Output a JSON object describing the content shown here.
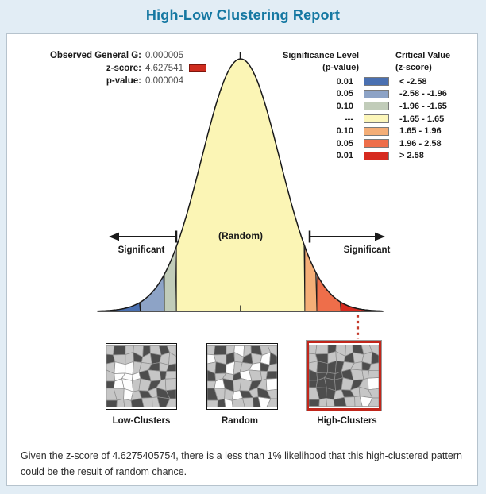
{
  "title": "High-Low Clustering Report",
  "stats": {
    "observed_label": "Observed General G:",
    "observed_value": "0.000005",
    "zscore_label": "z-score:",
    "zscore_value": "4.627541",
    "pvalue_label": "p-value:",
    "pvalue_value": "0.000004",
    "marker_color": "#cf2c1e"
  },
  "legend": {
    "sig_header": "Significance Level",
    "sig_subheader": "(p-value)",
    "crit_header": "Critical Value",
    "crit_subheader": "(z-score)",
    "rows": [
      {
        "p": "0.01",
        "color": "#4a70b1",
        "z": "< -2.58"
      },
      {
        "p": "0.05",
        "color": "#8da3c6",
        "z": "-2.58 - -1.96"
      },
      {
        "p": "0.10",
        "color": "#c1ccb9",
        "z": "-1.96 - -1.65"
      },
      {
        "p": "---",
        "color": "#fcf6ba",
        "z": "-1.65 - 1.65"
      },
      {
        "p": "0.10",
        "color": "#f4ae77",
        "z": "1.65 - 1.96"
      },
      {
        "p": "0.05",
        "color": "#ee6e4a",
        "z": "1.96 - 2.58"
      },
      {
        "p": "0.01",
        "color": "#d62a1f",
        "z": "> 2.58"
      }
    ]
  },
  "curve": {
    "random_label": "(Random)",
    "significant_left_label": "Significant",
    "significant_right_label": "Significant",
    "segments": [
      {
        "z0": -3.68,
        "z1": -2.58,
        "color": "#4a70b1"
      },
      {
        "z0": -2.58,
        "z1": -1.96,
        "color": "#8da3c6"
      },
      {
        "z0": -1.96,
        "z1": -1.65,
        "color": "#c1ccb9"
      },
      {
        "z0": -1.65,
        "z1": 1.65,
        "color": "#fbf5b5"
      },
      {
        "z0": 1.65,
        "z1": 1.96,
        "color": "#f4ae77"
      },
      {
        "z0": 1.96,
        "z1": 2.58,
        "color": "#ee6e4a"
      },
      {
        "z0": 2.58,
        "z1": 3.68,
        "color": "#d62a1f"
      }
    ]
  },
  "thumbnails": {
    "palette": {
      "0": "#fdfdfd",
      "1": "#c6c6c6",
      "2": "#4d4d4d"
    },
    "items": [
      {
        "label": "Low-Clusters",
        "highlighted": false,
        "grid": [
          "12112121",
          "21121211",
          "10011212",
          "10002121",
          "20011211",
          "11012122",
          "21121121"
        ]
      },
      {
        "label": "Random",
        "highlighted": false,
        "grid": [
          "12101211",
          "01212102",
          "12011021",
          "21120112",
          "10211210",
          "21102121",
          "12011201"
        ]
      },
      {
        "label": "High-Clusters",
        "highlighted": true,
        "grid": [
          "11211211",
          "12112112",
          "12221121",
          "22222111",
          "22221210",
          "12212111",
          "21121101"
        ]
      }
    ]
  },
  "footer": {
    "text": "Given the z-score of 4.6275405754, there is a less than 1% likelihood that this high-clustered pattern could be the result of random chance."
  }
}
